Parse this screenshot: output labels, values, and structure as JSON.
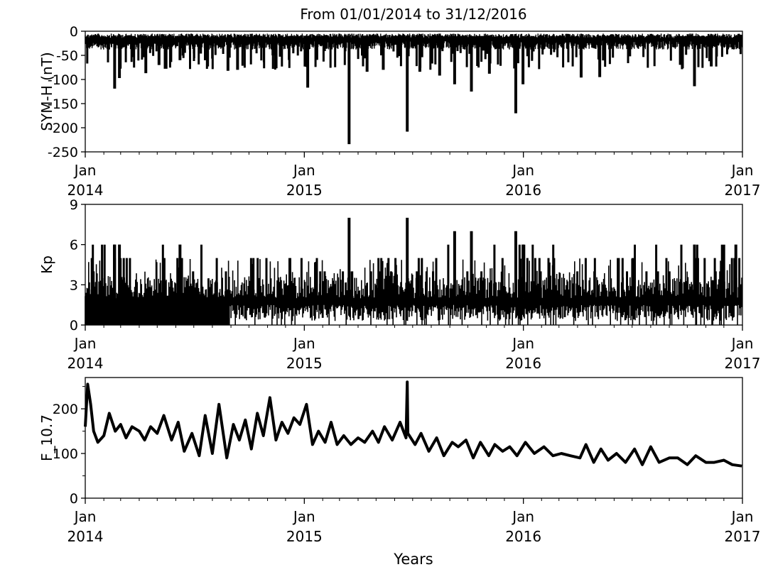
{
  "figure": {
    "title": "From 01/01/2014 to 31/12/2016",
    "xlabel": "Years"
  },
  "chart_data": [
    {
      "type": "line",
      "ylabel": "SYM-H (nT)",
      "ylim": [
        -250,
        0
      ],
      "yticks": [
        0,
        -50,
        -100,
        -150,
        -200,
        -250
      ],
      "ytick_labels": [
        "0",
        "-50",
        "-100",
        "-150",
        "-200",
        "-250"
      ],
      "xlim": [
        "2014-01-01",
        "2017-01-01"
      ],
      "xticks": [
        "Jan 2014",
        "Jan 2015",
        "Jan 2016",
        "Jan 2017"
      ],
      "series": [
        {
          "color": "#000000",
          "baseline_range": [
            -38,
            -5
          ],
          "storm_minima": [
            {
              "date": "2014-02-19",
              "value": -119
            },
            {
              "date": "2014-02-27",
              "value": -97
            },
            {
              "date": "2014-04-12",
              "value": -87
            },
            {
              "date": "2014-05-04",
              "value": -70
            },
            {
              "date": "2014-06-08",
              "value": -60
            },
            {
              "date": "2014-08-27",
              "value": -82
            },
            {
              "date": "2014-09-12",
              "value": -80
            },
            {
              "date": "2014-11-10",
              "value": -50
            },
            {
              "date": "2015-01-07",
              "value": -117
            },
            {
              "date": "2015-03-17",
              "value": -234
            },
            {
              "date": "2015-04-16",
              "value": -84
            },
            {
              "date": "2015-05-13",
              "value": -80
            },
            {
              "date": "2015-06-22",
              "value": -208
            },
            {
              "date": "2015-07-13",
              "value": -84
            },
            {
              "date": "2015-08-15",
              "value": -92
            },
            {
              "date": "2015-09-09",
              "value": -110
            },
            {
              "date": "2015-10-07",
              "value": -125
            },
            {
              "date": "2015-11-06",
              "value": -88
            },
            {
              "date": "2015-12-20",
              "value": -170
            },
            {
              "date": "2016-01-01",
              "value": -110
            },
            {
              "date": "2016-04-07",
              "value": -96
            },
            {
              "date": "2016-05-08",
              "value": -95
            },
            {
              "date": "2016-10-13",
              "value": -114
            },
            {
              "date": "2016-11-10",
              "value": -73
            }
          ]
        }
      ]
    },
    {
      "type": "line",
      "ylabel": "Kp",
      "ylim": [
        0,
        9
      ],
      "yticks": [
        0,
        3,
        6,
        9
      ],
      "ytick_labels": [
        "0",
        "3",
        "6",
        "9"
      ],
      "xlim": [
        "2014-01-01",
        "2017-01-01"
      ],
      "xticks": [
        "Jan 2014",
        "Jan 2015",
        "Jan 2016",
        "Jan 2017"
      ],
      "series": [
        {
          "color": "#000000",
          "value_range": [
            0,
            8
          ],
          "peaks": [
            {
              "date": "2014-02-19",
              "value": 6
            },
            {
              "date": "2014-02-27",
              "value": 6
            },
            {
              "date": "2014-06-08",
              "value": 6
            },
            {
              "date": "2015-03-17",
              "value": 8
            },
            {
              "date": "2015-06-22",
              "value": 8
            },
            {
              "date": "2015-09-09",
              "value": 7
            },
            {
              "date": "2015-10-07",
              "value": 7
            },
            {
              "date": "2015-12-20",
              "value": 7
            },
            {
              "date": "2016-01-01",
              "value": 6
            },
            {
              "date": "2016-10-13",
              "value": 6
            },
            {
              "date": "2016-12-21",
              "value": 6
            }
          ]
        }
      ]
    },
    {
      "type": "line",
      "ylabel": "F_10.7",
      "ylim": [
        0,
        270
      ],
      "yticks": [
        0,
        100,
        200
      ],
      "ytick_labels": [
        "0",
        "100",
        "200"
      ],
      "xlim": [
        "2014-01-01",
        "2017-01-01"
      ],
      "xticks": [
        "Jan 2014",
        "Jan 2015",
        "Jan 2016",
        "Jan 2017"
      ],
      "series": [
        {
          "color": "#000000",
          "x": [
            "2014-01-01",
            "2014-01-05",
            "2014-01-10",
            "2014-01-15",
            "2014-01-22",
            "2014-02-01",
            "2014-02-10",
            "2014-02-20",
            "2014-03-01",
            "2014-03-10",
            "2014-03-20",
            "2014-04-01",
            "2014-04-10",
            "2014-04-20",
            "2014-05-01",
            "2014-05-12",
            "2014-05-25",
            "2014-06-05",
            "2014-06-15",
            "2014-06-28",
            "2014-07-10",
            "2014-07-20",
            "2014-08-01",
            "2014-08-12",
            "2014-08-25",
            "2014-09-05",
            "2014-09-15",
            "2014-09-25",
            "2014-10-05",
            "2014-10-15",
            "2014-10-25",
            "2014-11-05",
            "2014-11-15",
            "2014-11-25",
            "2014-12-05",
            "2014-12-15",
            "2014-12-25",
            "2015-01-05",
            "2015-01-15",
            "2015-01-25",
            "2015-02-05",
            "2015-02-15",
            "2015-02-25",
            "2015-03-08",
            "2015-03-20",
            "2015-04-01",
            "2015-04-12",
            "2015-04-25",
            "2015-05-05",
            "2015-05-15",
            "2015-05-28",
            "2015-06-10",
            "2015-06-20",
            "2015-06-22",
            "2015-06-23",
            "2015-07-05",
            "2015-07-15",
            "2015-07-28",
            "2015-08-10",
            "2015-08-22",
            "2015-09-05",
            "2015-09-15",
            "2015-09-28",
            "2015-10-10",
            "2015-10-22",
            "2015-11-05",
            "2015-11-15",
            "2015-11-28",
            "2015-12-10",
            "2015-12-22",
            "2016-01-05",
            "2016-01-20",
            "2016-02-05",
            "2016-02-20",
            "2016-03-05",
            "2016-03-20",
            "2016-04-05",
            "2016-04-15",
            "2016-04-28",
            "2016-05-10",
            "2016-05-22",
            "2016-06-05",
            "2016-06-20",
            "2016-07-05",
            "2016-07-18",
            "2016-08-01",
            "2016-08-15",
            "2016-09-01",
            "2016-09-15",
            "2016-10-01",
            "2016-10-15",
            "2016-11-01",
            "2016-11-15",
            "2016-12-01",
            "2016-12-15",
            "2016-12-31"
          ],
          "values": [
            160,
            255,
            210,
            150,
            125,
            140,
            190,
            150,
            165,
            135,
            160,
            150,
            130,
            160,
            145,
            185,
            130,
            170,
            105,
            145,
            95,
            185,
            100,
            210,
            90,
            165,
            130,
            175,
            110,
            190,
            140,
            225,
            130,
            170,
            145,
            180,
            165,
            210,
            120,
            150,
            125,
            170,
            120,
            140,
            120,
            135,
            125,
            150,
            125,
            160,
            130,
            170,
            135,
            260,
            145,
            120,
            145,
            105,
            135,
            95,
            125,
            115,
            130,
            90,
            125,
            95,
            120,
            105,
            115,
            95,
            125,
            100,
            115,
            95,
            100,
            95,
            90,
            120,
            80,
            110,
            85,
            100,
            80,
            110,
            75,
            115,
            80,
            90,
            90,
            75,
            95,
            80,
            80,
            85,
            75,
            72
          ]
        }
      ]
    }
  ]
}
